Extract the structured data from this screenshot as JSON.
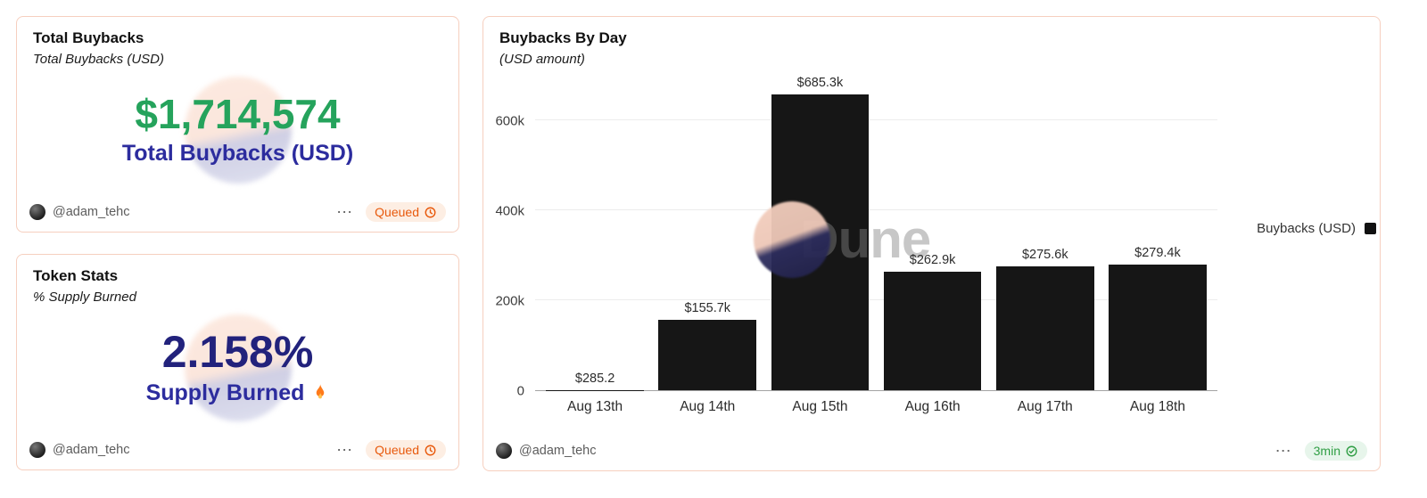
{
  "colors": {
    "card_border": "#f6cfbf",
    "value_green": "#25a35c",
    "value_navy": "#22227c",
    "label_navy": "#2c2c9e",
    "bar_color": "#161616",
    "queued_text": "#e8590c",
    "queued_bg": "#fdeee3",
    "synced_text": "#2f9e44",
    "synced_bg": "#e7f5eb"
  },
  "cards": [
    {
      "title": "Total Buybacks",
      "subtitle": "Total Buybacks (USD)",
      "value": "$1,714,574",
      "value_label": "Total Buybacks (USD)",
      "author": "@adam_tehc",
      "menu": "⋯",
      "status": "Queued"
    },
    {
      "title": "Token Stats",
      "subtitle": "% Supply Burned",
      "value": "2.158%",
      "value_label": "Supply Burned",
      "author": "@adam_tehc",
      "menu": "⋯",
      "status": "Queued"
    },
    {
      "title": "Buybacks By Day",
      "subtitle": "(USD amount)",
      "author": "@adam_tehc",
      "menu": "⋯",
      "status": "3min",
      "legend": "Buybacks (USD)",
      "watermark": "Dune"
    }
  ],
  "chart_data": {
    "type": "bar",
    "title": "Buybacks By Day",
    "subtitle": "(USD amount)",
    "categories": [
      "Aug 13th",
      "Aug 14th",
      "Aug 15th",
      "Aug 16th",
      "Aug 17th",
      "Aug 18th"
    ],
    "values": [
      285.2,
      155700,
      685300,
      262900,
      275600,
      279400
    ],
    "value_labels": [
      "$285.2",
      "$155.7k",
      "$685.3k",
      "$262.9k",
      "$275.6k",
      "$279.4k"
    ],
    "series_name": "Buybacks (USD)",
    "yticks": [
      0,
      200000,
      400000,
      600000
    ],
    "ytick_labels": [
      "0",
      "200k",
      "400k",
      "600k"
    ],
    "ylim": [
      0,
      700000
    ],
    "grid": "horizontal",
    "legend_position": "right",
    "bar_color": "#161616"
  }
}
